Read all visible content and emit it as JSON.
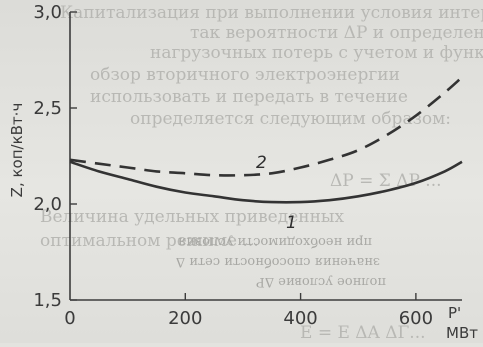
{
  "chart_data": {
    "type": "line",
    "ylabel": "Z, коп/кВт·ч",
    "xlabel_top": "P'",
    "xlabel_unit": "МВт",
    "x_ticks": [
      "0",
      "200",
      "400",
      "600"
    ],
    "y_ticks": [
      "1,5",
      "2,0",
      "2,5",
      "3,0"
    ],
    "xlim": [
      0,
      680
    ],
    "ylim": [
      1.5,
      3.0
    ],
    "series": [
      {
        "name": "1",
        "style": "solid",
        "x": [
          0,
          50,
          100,
          150,
          200,
          250,
          300,
          350,
          400,
          450,
          500,
          550,
          600,
          650,
          680
        ],
        "y": [
          2.22,
          2.17,
          2.13,
          2.09,
          2.06,
          2.04,
          2.02,
          2.01,
          2.01,
          2.02,
          2.04,
          2.07,
          2.11,
          2.17,
          2.22
        ]
      },
      {
        "name": "2",
        "style": "dashed",
        "x": [
          0,
          50,
          100,
          150,
          200,
          250,
          300,
          350,
          400,
          450,
          500,
          550,
          600,
          650,
          680
        ],
        "y": [
          2.23,
          2.21,
          2.19,
          2.17,
          2.16,
          2.15,
          2.15,
          2.16,
          2.19,
          2.23,
          2.28,
          2.36,
          2.46,
          2.58,
          2.66
        ]
      }
    ],
    "grid": false,
    "legend": "inline labels"
  },
  "colors": {
    "ink": "#3c3c3c",
    "paper": "#e3e3df",
    "bleed": "#b8b8b4"
  },
  "bleed_through": [
    "Капитализация при выполнении условия интервал",
    "так вероятности ΔP и определения",
    "нагрузочных потерь с учетом и функциональной",
    "обзор вторичного электроэнергии",
    "использовать и передать в течение",
    "определяется следующим образом:",
    "ΔP = Σ ΔP ...",
    "Величина удельных приведенных",
    "оптимальном режиме ...",
    "Е = Ε ΔA ΔΓ..."
  ],
  "overlay_text": [
    "при необходимости условия",
    "значения способности сети Δ",
    "полное условие ΔP"
  ]
}
